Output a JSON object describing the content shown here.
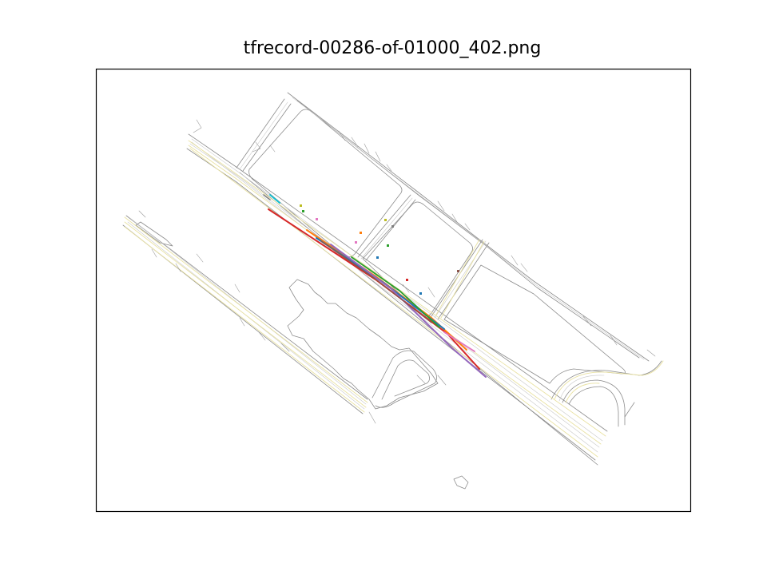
{
  "figure": {
    "title": "tfrecord-00286-of-01000_402.png"
  },
  "colors": {
    "road_edge": "#8c8c8c",
    "lane_center": "#c8c8c8",
    "lane_yellow": "#e9e2a3",
    "frame": "#000000"
  },
  "trajectories": [
    {
      "color": "#d62728"
    },
    {
      "color": "#ff7f0e"
    },
    {
      "color": "#1f77b4"
    },
    {
      "color": "#9467bd"
    },
    {
      "color": "#2ca02c"
    },
    {
      "color": "#8c564b"
    },
    {
      "color": "#e377c2"
    },
    {
      "color": "#17becf"
    },
    {
      "color": "#7f7f7f"
    }
  ],
  "agents": [
    {
      "color": "#bcbd22"
    },
    {
      "color": "#2ca02c"
    },
    {
      "color": "#e377c2"
    },
    {
      "color": "#ff7f0e"
    },
    {
      "color": "#e377c2"
    },
    {
      "color": "#2ca02c"
    },
    {
      "color": "#1f77b4"
    },
    {
      "color": "#d62728"
    },
    {
      "color": "#1f77b4"
    },
    {
      "color": "#8c564b"
    },
    {
      "color": "#bcbd22"
    },
    {
      "color": "#7f7f7f"
    }
  ]
}
